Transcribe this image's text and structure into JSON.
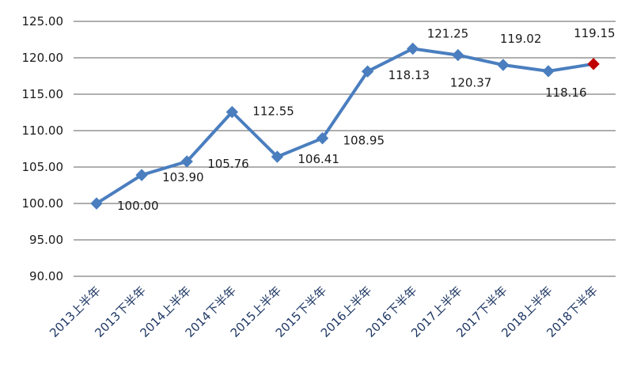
{
  "chart_data": {
    "type": "line",
    "title": "",
    "xlabel": "",
    "ylabel": "",
    "categories": [
      "2013上半年",
      "2013下半年",
      "2014上半年",
      "2014下半年",
      "2015上半年",
      "2015下半年",
      "2016上半年",
      "2016下半年",
      "2017上半年",
      "2017下半年",
      "2018上半年",
      "2018下半年"
    ],
    "series": [
      {
        "values": [
          100.0,
          103.9,
          105.76,
          112.55,
          106.41,
          108.95,
          118.13,
          121.25,
          120.37,
          119.02,
          118.16,
          119.15
        ],
        "labels": [
          "100.00",
          "103.90",
          "105.76",
          "112.55",
          "106.41",
          "108.95",
          "118.13",
          "121.25",
          "120.37",
          "119.02",
          "118.16",
          "119.15"
        ]
      }
    ],
    "ylim": [
      90,
      125
    ],
    "yticks": [
      "90.00",
      "95.00",
      "100.00",
      "105.00",
      "110.00",
      "115.00",
      "120.00",
      "125.00"
    ],
    "grid": true,
    "legend": "none",
    "colors": {
      "line": "#4a7ebf",
      "marker": "#4a7ebf",
      "last_marker": "#c00000",
      "grid": "#7f7f7f"
    }
  }
}
